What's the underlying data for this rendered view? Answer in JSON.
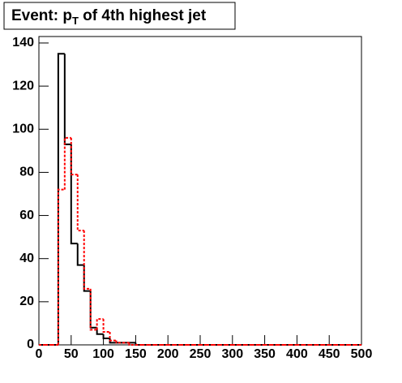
{
  "chart_data": {
    "type": "histogram",
    "title": [
      "Event: p",
      "T",
      " of 4th highest jet"
    ],
    "bins": [
      0,
      10,
      20,
      30,
      40,
      50,
      60,
      70,
      80,
      90,
      100,
      110,
      120,
      130,
      140,
      150,
      160,
      170,
      180,
      190,
      200,
      210,
      220,
      230,
      240,
      250,
      260,
      270,
      280,
      290,
      300,
      310,
      320,
      330,
      340,
      350,
      360,
      370,
      380,
      390,
      400,
      410,
      420,
      430,
      440,
      450,
      460,
      470,
      480,
      490,
      500
    ],
    "series": [
      {
        "color": "#000000",
        "dashed": false,
        "values": [
          0,
          0,
          0,
          135,
          93,
          47,
          37,
          25,
          8,
          5,
          3,
          1,
          1,
          1,
          1,
          0,
          0,
          0,
          0,
          0,
          0,
          0,
          0,
          0,
          0,
          0,
          0,
          0,
          0,
          0,
          0,
          0,
          0,
          0,
          0,
          0,
          0,
          0,
          0,
          0,
          0,
          0,
          0,
          0,
          0,
          0,
          0,
          0,
          0,
          0
        ]
      },
      {
        "color": "#ff0000",
        "dashed": true,
        "values": [
          0,
          0,
          0,
          72,
          96,
          79,
          53,
          26,
          7,
          12,
          6,
          2,
          1,
          1,
          0,
          0,
          0,
          0,
          0,
          0,
          0,
          0,
          0,
          0,
          0,
          0,
          0,
          0,
          0,
          0,
          0,
          0,
          0,
          0,
          0,
          0,
          0,
          0,
          0,
          0,
          0,
          0,
          0,
          0,
          0,
          0,
          0,
          0,
          0,
          0
        ]
      }
    ],
    "xlim": [
      0,
      500
    ],
    "xticks": [
      0,
      50,
      100,
      150,
      200,
      250,
      300,
      350,
      400,
      450,
      500
    ],
    "ylim": [
      0,
      143
    ],
    "yticks": [
      0,
      20,
      40,
      60,
      80,
      100,
      120,
      140
    ]
  }
}
